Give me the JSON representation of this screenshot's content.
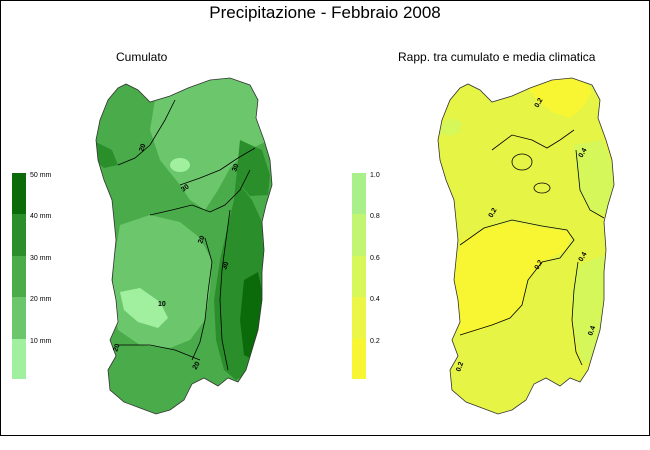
{
  "title": "Precipitazione - Febbraio 2008",
  "maps": [
    {
      "title": "Cumulato",
      "legend": {
        "labels": [
          "50 mm",
          "40 mm",
          "30 mm",
          "20 mm",
          "10 mm"
        ],
        "colors": [
          "#0b6b0b",
          "#2a8f2a",
          "#4aab4a",
          "#6cc66c",
          "#a0f0a0"
        ]
      },
      "contour_labels": [
        "20",
        "30",
        "20",
        "30",
        "20",
        "30",
        "10",
        "20",
        "20"
      ]
    },
    {
      "title": "Rapp. tra cumulato e media climatica",
      "legend": {
        "labels": [
          "1.0",
          "0.8",
          "0.6",
          "0.4",
          "0.2"
        ],
        "colors": [
          "#a9f08a",
          "#c2f572",
          "#d8f75a",
          "#ecf646",
          "#f8f632"
        ]
      },
      "contour_labels": [
        "0.2",
        "0.4",
        "0.2",
        "0.2",
        "0.4",
        "0.4",
        "0.2"
      ]
    }
  ]
}
